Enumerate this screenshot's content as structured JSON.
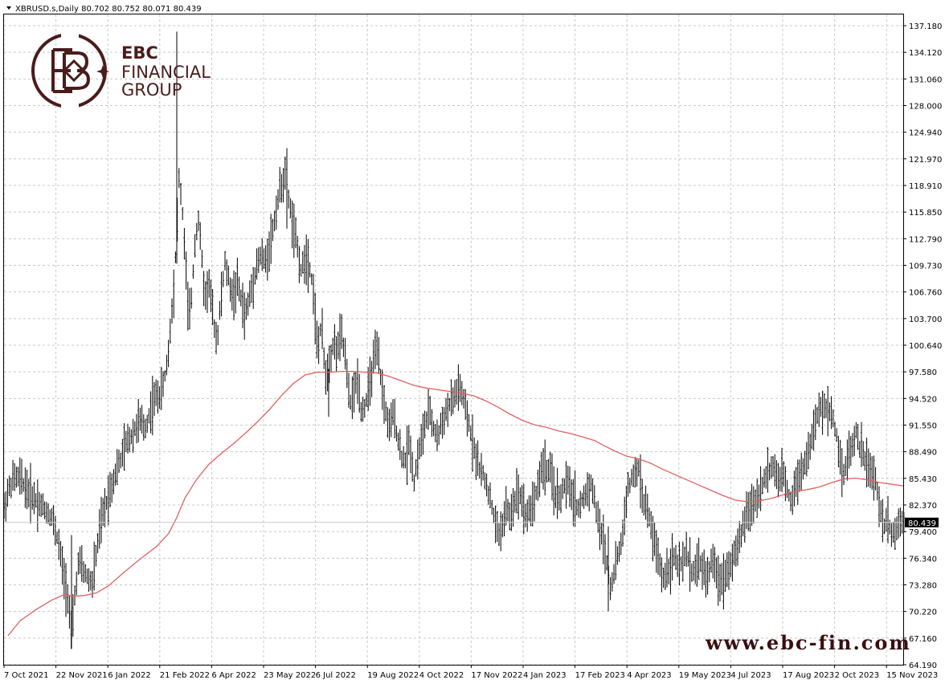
{
  "header": {
    "symbol_line": "XBRUSD.s,Daily  80.702 80.752 80.071 80.439"
  },
  "logo": {
    "line1": "EBC",
    "line2": "FINANCIAL",
    "line3": "GROUP",
    "color": "#4a1c1c"
  },
  "website": "www.ebc-fin.com",
  "chart_data": {
    "type": "line",
    "chart_style": "bar (OHLC)",
    "symbol": "XBRUSD.s",
    "timeframe": "Daily",
    "last_price": "80.439",
    "ylim": [
      64.19,
      138.7
    ],
    "grid": true,
    "y_ticks": [
      "137.180",
      "134.120",
      "131.060",
      "128.000",
      "124.940",
      "121.970",
      "118.910",
      "115.850",
      "112.790",
      "109.730",
      "106.760",
      "103.700",
      "100.640",
      "97.580",
      "94.520",
      "91.550",
      "88.490",
      "85.430",
      "82.370",
      "79.400",
      "76.340",
      "73.280",
      "70.220",
      "67.160",
      "64.190"
    ],
    "x_ticks": [
      "7 Oct 2021",
      "22 Nov 2021",
      "6 Jan 2022",
      "21 Feb 2022",
      "6 Apr 2022",
      "23 May 2022",
      "6 Jul 2022",
      "19 Aug 2022",
      "4 Oct 2022",
      "17 Nov 2022",
      "4 Jan 2023",
      "17 Feb 2023",
      "4 Apr 2023",
      "19 May 2023",
      "4 Jul 2023",
      "17 Aug 2023",
      "2 Oct 2023",
      "15 Nov 2023"
    ],
    "series": [
      {
        "kind": "price",
        "color": "#000000",
        "points": [
          [
            0,
            82
          ],
          [
            5,
            84
          ],
          [
            12,
            85.5
          ],
          [
            20,
            85.5
          ],
          [
            30,
            84
          ],
          [
            40,
            83
          ],
          [
            50,
            82
          ],
          [
            60,
            81
          ],
          [
            68,
            78
          ],
          [
            75,
            74
          ],
          [
            80,
            72
          ],
          [
            84,
            67
          ],
          [
            88,
            72
          ],
          [
            93,
            76
          ],
          [
            98,
            75
          ],
          [
            105,
            74
          ],
          [
            110,
            73.5
          ],
          [
            115,
            77
          ],
          [
            120,
            80
          ],
          [
            125,
            82
          ],
          [
            130,
            83.5
          ],
          [
            135,
            85
          ],
          [
            140,
            86.5
          ],
          [
            145,
            87.5
          ],
          [
            150,
            89
          ],
          [
            155,
            90
          ],
          [
            160,
            90.5
          ],
          [
            165,
            91.5
          ],
          [
            170,
            92
          ],
          [
            175,
            91
          ],
          [
            180,
            92.5
          ],
          [
            185,
            94
          ],
          [
            190,
            95
          ],
          [
            195,
            95
          ],
          [
            200,
            97
          ],
          [
            205,
            100
          ],
          [
            208,
            104
          ],
          [
            212,
            108
          ],
          [
            215,
            114
          ],
          [
            218,
            120
          ],
          [
            222,
            116
          ],
          [
            226,
            110
          ],
          [
            230,
            103
          ],
          [
            234,
            107
          ],
          [
            238,
            113
          ],
          [
            242,
            115
          ],
          [
            245,
            112
          ],
          [
            250,
            106
          ],
          [
            255,
            108
          ],
          [
            260,
            104
          ],
          [
            265,
            101
          ],
          [
            270,
            106
          ],
          [
            275,
            110
          ],
          [
            280,
            108
          ],
          [
            285,
            106
          ],
          [
            290,
            108
          ],
          [
            295,
            106
          ],
          [
            300,
            104
          ],
          [
            305,
            106
          ],
          [
            310,
            108
          ],
          [
            315,
            110
          ],
          [
            320,
            111
          ],
          [
            325,
            110
          ],
          [
            330,
            112
          ],
          [
            335,
            114
          ],
          [
            340,
            117
          ],
          [
            345,
            119
          ],
          [
            350,
            120
          ],
          [
            355,
            117
          ],
          [
            360,
            114
          ],
          [
            365,
            112
          ],
          [
            370,
            109
          ],
          [
            375,
            111
          ],
          [
            380,
            110
          ],
          [
            385,
            107
          ],
          [
            390,
            100
          ],
          [
            395,
            103
          ],
          [
            400,
            97
          ],
          [
            405,
            99
          ],
          [
            410,
            101
          ],
          [
            415,
            100
          ],
          [
            420,
            102
          ],
          [
            425,
            99
          ],
          [
            430,
            94
          ],
          [
            435,
            95
          ],
          [
            440,
            97
          ],
          [
            445,
            93
          ],
          [
            450,
            94
          ],
          [
            455,
            96
          ],
          [
            460,
            99
          ],
          [
            465,
            100
          ],
          [
            470,
            96
          ],
          [
            475,
            93
          ],
          [
            480,
            91
          ],
          [
            485,
            93
          ],
          [
            490,
            90
          ],
          [
            495,
            88
          ],
          [
            500,
            87.5
          ],
          [
            505,
            90
          ],
          [
            510,
            85
          ],
          [
            515,
            88
          ],
          [
            520,
            90
          ],
          [
            525,
            92
          ],
          [
            530,
            93
          ],
          [
            535,
            91
          ],
          [
            540,
            90
          ],
          [
            545,
            92
          ],
          [
            550,
            93
          ],
          [
            555,
            94
          ],
          [
            560,
            94.5
          ],
          [
            565,
            96
          ],
          [
            570,
            95
          ],
          [
            575,
            93
          ],
          [
            580,
            91
          ],
          [
            585,
            89
          ],
          [
            590,
            87
          ],
          [
            595,
            86
          ],
          [
            600,
            85
          ],
          [
            605,
            83
          ],
          [
            610,
            81
          ],
          [
            615,
            79
          ],
          [
            620,
            80
          ],
          [
            625,
            82
          ],
          [
            630,
            81
          ],
          [
            635,
            83
          ],
          [
            640,
            84
          ],
          [
            645,
            83
          ],
          [
            650,
            81
          ],
          [
            655,
            82
          ],
          [
            660,
            83
          ],
          [
            665,
            85
          ],
          [
            670,
            87
          ],
          [
            675,
            86.5
          ],
          [
            680,
            86
          ],
          [
            685,
            84
          ],
          [
            690,
            83
          ],
          [
            695,
            84
          ],
          [
            700,
            85
          ],
          [
            705,
            84
          ],
          [
            710,
            83
          ],
          [
            715,
            82
          ],
          [
            720,
            83
          ],
          [
            725,
            84
          ],
          [
            730,
            85
          ],
          [
            735,
            83
          ],
          [
            740,
            80
          ],
          [
            745,
            79
          ],
          [
            750,
            76
          ],
          [
            755,
            73
          ],
          [
            760,
            75
          ],
          [
            765,
            77
          ],
          [
            770,
            79
          ],
          [
            775,
            84
          ],
          [
            780,
            85
          ],
          [
            785,
            86
          ],
          [
            790,
            86.5
          ],
          [
            795,
            83
          ],
          [
            800,
            82
          ],
          [
            805,
            80
          ],
          [
            810,
            78
          ],
          [
            815,
            76
          ],
          [
            820,
            74
          ],
          [
            825,
            75
          ],
          [
            830,
            76
          ],
          [
            835,
            76.5
          ],
          [
            840,
            75
          ],
          [
            845,
            76
          ],
          [
            850,
            77
          ],
          [
            855,
            75
          ],
          [
            860,
            75
          ],
          [
            865,
            76
          ],
          [
            870,
            75
          ],
          [
            875,
            74
          ],
          [
            880,
            76
          ],
          [
            885,
            75
          ],
          [
            890,
            74
          ],
          [
            895,
            74
          ],
          [
            900,
            75
          ],
          [
            905,
            76
          ],
          [
            910,
            77
          ],
          [
            915,
            78
          ],
          [
            920,
            80
          ],
          [
            925,
            82
          ],
          [
            930,
            82
          ],
          [
            935,
            83
          ],
          [
            940,
            84
          ],
          [
            945,
            85
          ],
          [
            950,
            86
          ],
          [
            955,
            87
          ],
          [
            960,
            86
          ],
          [
            965,
            85
          ],
          [
            970,
            86
          ],
          [
            975,
            84
          ],
          [
            980,
            83
          ],
          [
            985,
            85
          ],
          [
            990,
            86
          ],
          [
            995,
            87
          ],
          [
            1000,
            88
          ],
          [
            1005,
            90
          ],
          [
            1010,
            92
          ],
          [
            1015,
            93
          ],
          [
            1020,
            94
          ],
          [
            1025,
            93
          ],
          [
            1030,
            93
          ],
          [
            1035,
            91
          ],
          [
            1040,
            88
          ],
          [
            1045,
            86
          ],
          [
            1050,
            88
          ],
          [
            1055,
            89
          ],
          [
            1060,
            91
          ],
          [
            1065,
            89
          ],
          [
            1070,
            88
          ],
          [
            1075,
            87
          ],
          [
            1080,
            86
          ],
          [
            1085,
            85
          ],
          [
            1090,
            82
          ],
          [
            1095,
            80
          ],
          [
            1100,
            81
          ],
          [
            1105,
            79
          ],
          [
            1110,
            79.5
          ],
          [
            1115,
            81
          ],
          [
            1120,
            80.4
          ]
        ]
      },
      {
        "kind": "moving_average",
        "color": "#e06060",
        "points": [
          [
            5,
            67.5
          ],
          [
            20,
            69.2
          ],
          [
            40,
            70.5
          ],
          [
            60,
            71.6
          ],
          [
            75,
            72.2
          ],
          [
            85,
            72.0
          ],
          [
            100,
            72.1
          ],
          [
            115,
            72.4
          ],
          [
            130,
            73.2
          ],
          [
            150,
            74.8
          ],
          [
            170,
            76.3
          ],
          [
            190,
            77.7
          ],
          [
            205,
            79.2
          ],
          [
            215,
            81.0
          ],
          [
            225,
            83.2
          ],
          [
            240,
            85.4
          ],
          [
            255,
            87.1
          ],
          [
            270,
            88.3
          ],
          [
            285,
            89.4
          ],
          [
            300,
            90.6
          ],
          [
            315,
            91.9
          ],
          [
            330,
            93.3
          ],
          [
            345,
            94.9
          ],
          [
            360,
            96.3
          ],
          [
            375,
            97.3
          ],
          [
            390,
            97.6
          ],
          [
            405,
            97.6
          ],
          [
            420,
            97.7
          ],
          [
            435,
            97.7
          ],
          [
            450,
            97.6
          ],
          [
            465,
            97.5
          ],
          [
            480,
            97.1
          ],
          [
            495,
            96.6
          ],
          [
            510,
            96.1
          ],
          [
            525,
            95.8
          ],
          [
            540,
            95.6
          ],
          [
            555,
            95.4
          ],
          [
            570,
            95.2
          ],
          [
            585,
            94.9
          ],
          [
            600,
            94.3
          ],
          [
            615,
            93.6
          ],
          [
            630,
            92.8
          ],
          [
            645,
            92.1
          ],
          [
            660,
            91.6
          ],
          [
            675,
            91.3
          ],
          [
            690,
            90.9
          ],
          [
            705,
            90.6
          ],
          [
            720,
            90.2
          ],
          [
            735,
            89.8
          ],
          [
            745,
            89.3
          ],
          [
            760,
            88.6
          ],
          [
            775,
            88.0
          ],
          [
            790,
            87.7
          ],
          [
            805,
            87.2
          ],
          [
            820,
            86.5
          ],
          [
            835,
            85.9
          ],
          [
            850,
            85.3
          ],
          [
            865,
            84.7
          ],
          [
            880,
            84.1
          ],
          [
            895,
            83.5
          ],
          [
            910,
            83.0
          ],
          [
            925,
            82.8
          ],
          [
            940,
            82.9
          ],
          [
            955,
            83.2
          ],
          [
            970,
            83.6
          ],
          [
            985,
            84.0
          ],
          [
            1000,
            84.2
          ],
          [
            1015,
            84.5
          ],
          [
            1030,
            85.0
          ],
          [
            1045,
            85.4
          ],
          [
            1060,
            85.5
          ],
          [
            1075,
            85.3
          ],
          [
            1090,
            85.0
          ],
          [
            1105,
            84.8
          ],
          [
            1120,
            84.6
          ]
        ]
      }
    ]
  }
}
